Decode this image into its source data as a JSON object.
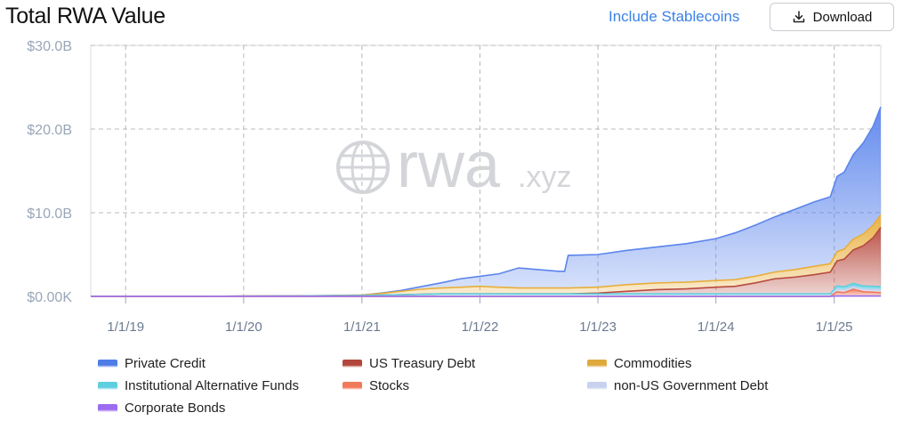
{
  "header": {
    "title": "Total RWA Value",
    "stablecoins_link": "Include Stablecoins",
    "download_label": "Download"
  },
  "watermark": {
    "word": "rwa",
    "suffix": ".xyz"
  },
  "chart_data": {
    "type": "area",
    "stacked": true,
    "title": "Total RWA Value",
    "x_tick_labels": [
      "1/1/19",
      "1/1/20",
      "1/1/21",
      "1/1/22",
      "1/1/23",
      "1/1/24",
      "1/1/25"
    ],
    "x_range": [
      "2018-09-15",
      "2025-05-25"
    ],
    "y_tick_labels": [
      "$30.0B",
      "$20.0B",
      "$10.0B",
      "$0.00K"
    ],
    "ylim": [
      0,
      30
    ],
    "y_unit": "$B",
    "grid": true,
    "legend_position": "bottom",
    "x": [
      "2018-09-15",
      "2019-06-01",
      "2020-01-01",
      "2020-06-01",
      "2021-01-01",
      "2021-03-01",
      "2021-05-01",
      "2021-07-01",
      "2021-09-01",
      "2021-11-01",
      "2022-01-01",
      "2022-03-01",
      "2022-05-01",
      "2022-07-01",
      "2022-09-01",
      "2022-09-20",
      "2022-10-01",
      "2023-01-01",
      "2023-04-01",
      "2023-07-01",
      "2023-10-01",
      "2024-01-01",
      "2024-03-01",
      "2024-05-01",
      "2024-07-01",
      "2024-09-01",
      "2024-11-01",
      "2024-12-20",
      "2025-01-10",
      "2025-02-01",
      "2025-03-01",
      "2025-04-01",
      "2025-05-01",
      "2025-05-25"
    ],
    "series": [
      {
        "name": "Corporate Bonds",
        "color": "#9b6bf0",
        "values": [
          0,
          0,
          0,
          0,
          0,
          0,
          0,
          0,
          0,
          0,
          0,
          0,
          0,
          0,
          0,
          0,
          0,
          0,
          0,
          0,
          0,
          0,
          0,
          0,
          0,
          0,
          0,
          0,
          0.05,
          0.05,
          0.05,
          0.05,
          0.05,
          0.05
        ]
      },
      {
        "name": "Stocks",
        "color": "#f07a5a",
        "values": [
          0,
          0,
          0,
          0,
          0,
          0,
          0,
          0,
          0,
          0,
          0,
          0,
          0,
          0,
          0,
          0,
          0,
          0,
          0,
          0,
          0,
          0,
          0,
          0,
          0,
          0,
          0,
          0,
          0.5,
          0.4,
          0.8,
          0.5,
          0.45,
          0.4
        ]
      },
      {
        "name": "non-US Government Debt",
        "color": "#c8d2ee",
        "values": [
          0,
          0,
          0,
          0,
          0,
          0,
          0,
          0,
          0,
          0,
          0,
          0,
          0,
          0,
          0,
          0,
          0,
          0,
          0,
          0,
          0,
          0,
          0,
          0,
          0,
          0,
          0,
          0,
          0.3,
          0.3,
          0.3,
          0.3,
          0.3,
          0.3
        ]
      },
      {
        "name": "Institutional Alternative Funds",
        "color": "#5ecfe0",
        "values": [
          0.02,
          0.02,
          0.03,
          0.05,
          0.1,
          0.15,
          0.2,
          0.25,
          0.3,
          0.3,
          0.3,
          0.3,
          0.3,
          0.3,
          0.3,
          0.3,
          0.3,
          0.3,
          0.3,
          0.3,
          0.3,
          0.3,
          0.3,
          0.3,
          0.3,
          0.3,
          0.3,
          0.3,
          0.4,
          0.4,
          0.4,
          0.4,
          0.4,
          0.4
        ]
      },
      {
        "name": "US Treasury Debt",
        "color": "#b84a3f",
        "values": [
          0,
          0,
          0,
          0,
          0,
          0,
          0,
          0,
          0,
          0,
          0,
          0,
          0,
          0,
          0,
          0,
          0,
          0.1,
          0.3,
          0.5,
          0.6,
          0.8,
          0.9,
          1.3,
          1.8,
          2.0,
          2.3,
          2.6,
          3.0,
          3.3,
          4.0,
          4.8,
          5.8,
          7.1
        ]
      },
      {
        "name": "Commodities",
        "color": "#e8ae3a",
        "values": [
          0,
          0,
          0,
          0,
          0.05,
          0.2,
          0.4,
          0.6,
          0.7,
          0.8,
          0.9,
          0.8,
          0.7,
          0.7,
          0.7,
          0.7,
          0.7,
          0.7,
          0.8,
          0.8,
          0.8,
          0.8,
          0.8,
          0.8,
          0.8,
          0.9,
          1.0,
          1.0,
          1.1,
          1.2,
          1.3,
          1.4,
          1.5,
          1.5
        ]
      },
      {
        "name": "Private Credit",
        "color": "#5b85ec",
        "values": [
          0,
          0,
          0,
          0,
          0,
          0.05,
          0.1,
          0.3,
          0.6,
          1.0,
          1.2,
          1.6,
          2.4,
          2.2,
          2.0,
          2.0,
          3.9,
          3.9,
          4.1,
          4.3,
          4.6,
          5.0,
          5.6,
          6.1,
          6.6,
          7.2,
          7.7,
          8.0,
          9.0,
          9.2,
          10.1,
          10.9,
          11.8,
          12.9
        ]
      }
    ]
  },
  "legend": [
    {
      "label": "Private Credit",
      "color": "#4f7de8"
    },
    {
      "label": "US Treasury Debt",
      "color": "#b3463c"
    },
    {
      "label": "Commodities",
      "color": "#e0a93c"
    },
    {
      "label": "Institutional Alternative Funds",
      "color": "#5ecfe0"
    },
    {
      "label": "Stocks",
      "color": "#f07a5a"
    },
    {
      "label": "non-US Government Debt",
      "color": "#c8d2ee"
    },
    {
      "label": "Corporate Bonds",
      "color": "#9b6bf0"
    }
  ]
}
